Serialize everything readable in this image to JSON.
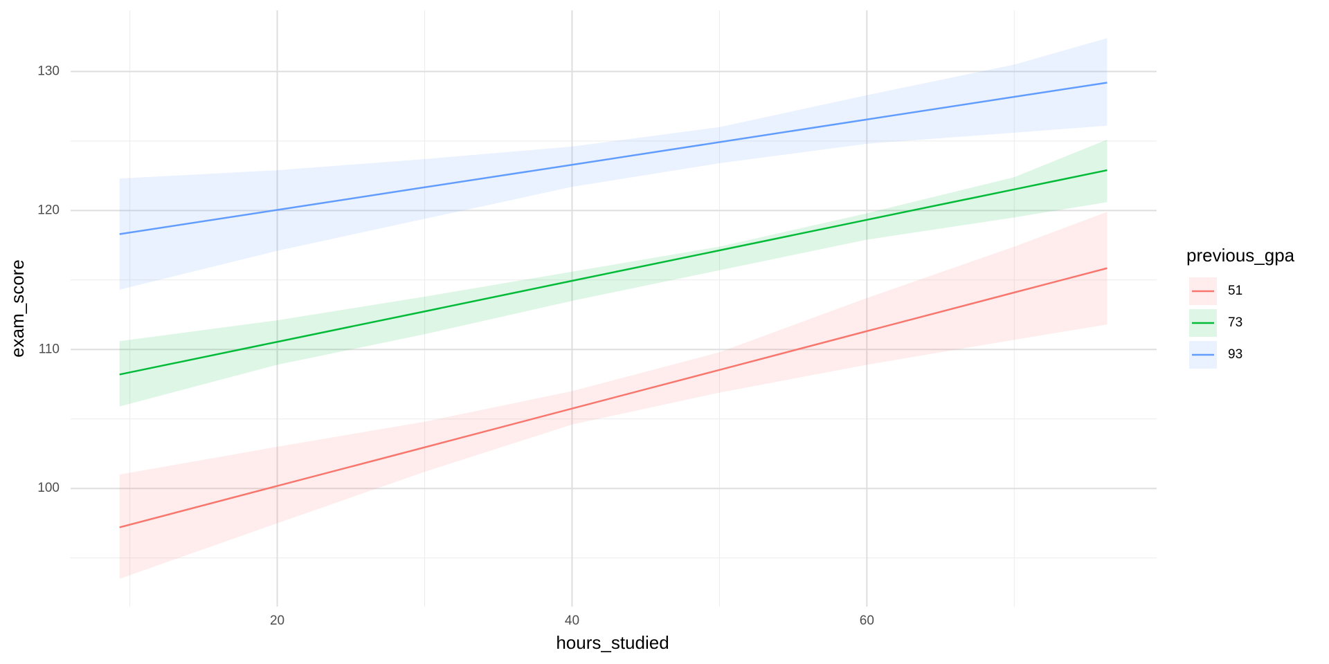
{
  "chart_data": {
    "type": "line",
    "x_label": "hours_studied",
    "y_label": "exam_score",
    "legend_title": "previous_gpa",
    "legend_position": "right",
    "grid": true,
    "x": [
      9.3,
      20,
      30,
      40,
      50,
      60,
      70,
      76.3
    ],
    "series": [
      {
        "name": "51",
        "color": "#F8766D",
        "values": [
          97.2,
          100.18,
          102.96,
          105.75,
          108.53,
          111.32,
          114.1,
          115.85
        ],
        "lower": [
          93.5,
          97.5,
          101.2,
          104.6,
          106.9,
          108.9,
          110.7,
          111.8
        ],
        "upper": [
          101.0,
          103.0,
          104.8,
          107.0,
          109.8,
          113.7,
          117.4,
          119.9
        ]
      },
      {
        "name": "73",
        "color": "#00BA38",
        "values": [
          108.2,
          110.55,
          112.74,
          114.94,
          117.13,
          119.33,
          121.52,
          122.9
        ],
        "lower": [
          105.9,
          108.9,
          111.1,
          113.5,
          115.7,
          117.9,
          119.5,
          120.6
        ],
        "upper": [
          110.6,
          112.1,
          113.8,
          115.6,
          117.4,
          119.8,
          122.4,
          125.1
        ]
      },
      {
        "name": "93",
        "color": "#619CFF",
        "values": [
          118.3,
          120.04,
          121.67,
          123.29,
          124.92,
          126.55,
          128.18,
          129.2
        ],
        "lower": [
          114.3,
          117.1,
          119.4,
          121.7,
          123.4,
          124.8,
          125.6,
          126.1
        ],
        "upper": [
          122.3,
          122.9,
          123.7,
          124.6,
          126.0,
          128.3,
          130.5,
          132.4
        ]
      }
    ],
    "xlim": [
      5.98,
      79.66
    ],
    "xticks": [
      20,
      40,
      60
    ],
    "ylim": [
      91.5,
      134.4
    ],
    "yticks": [
      100,
      110,
      120,
      130
    ]
  }
}
